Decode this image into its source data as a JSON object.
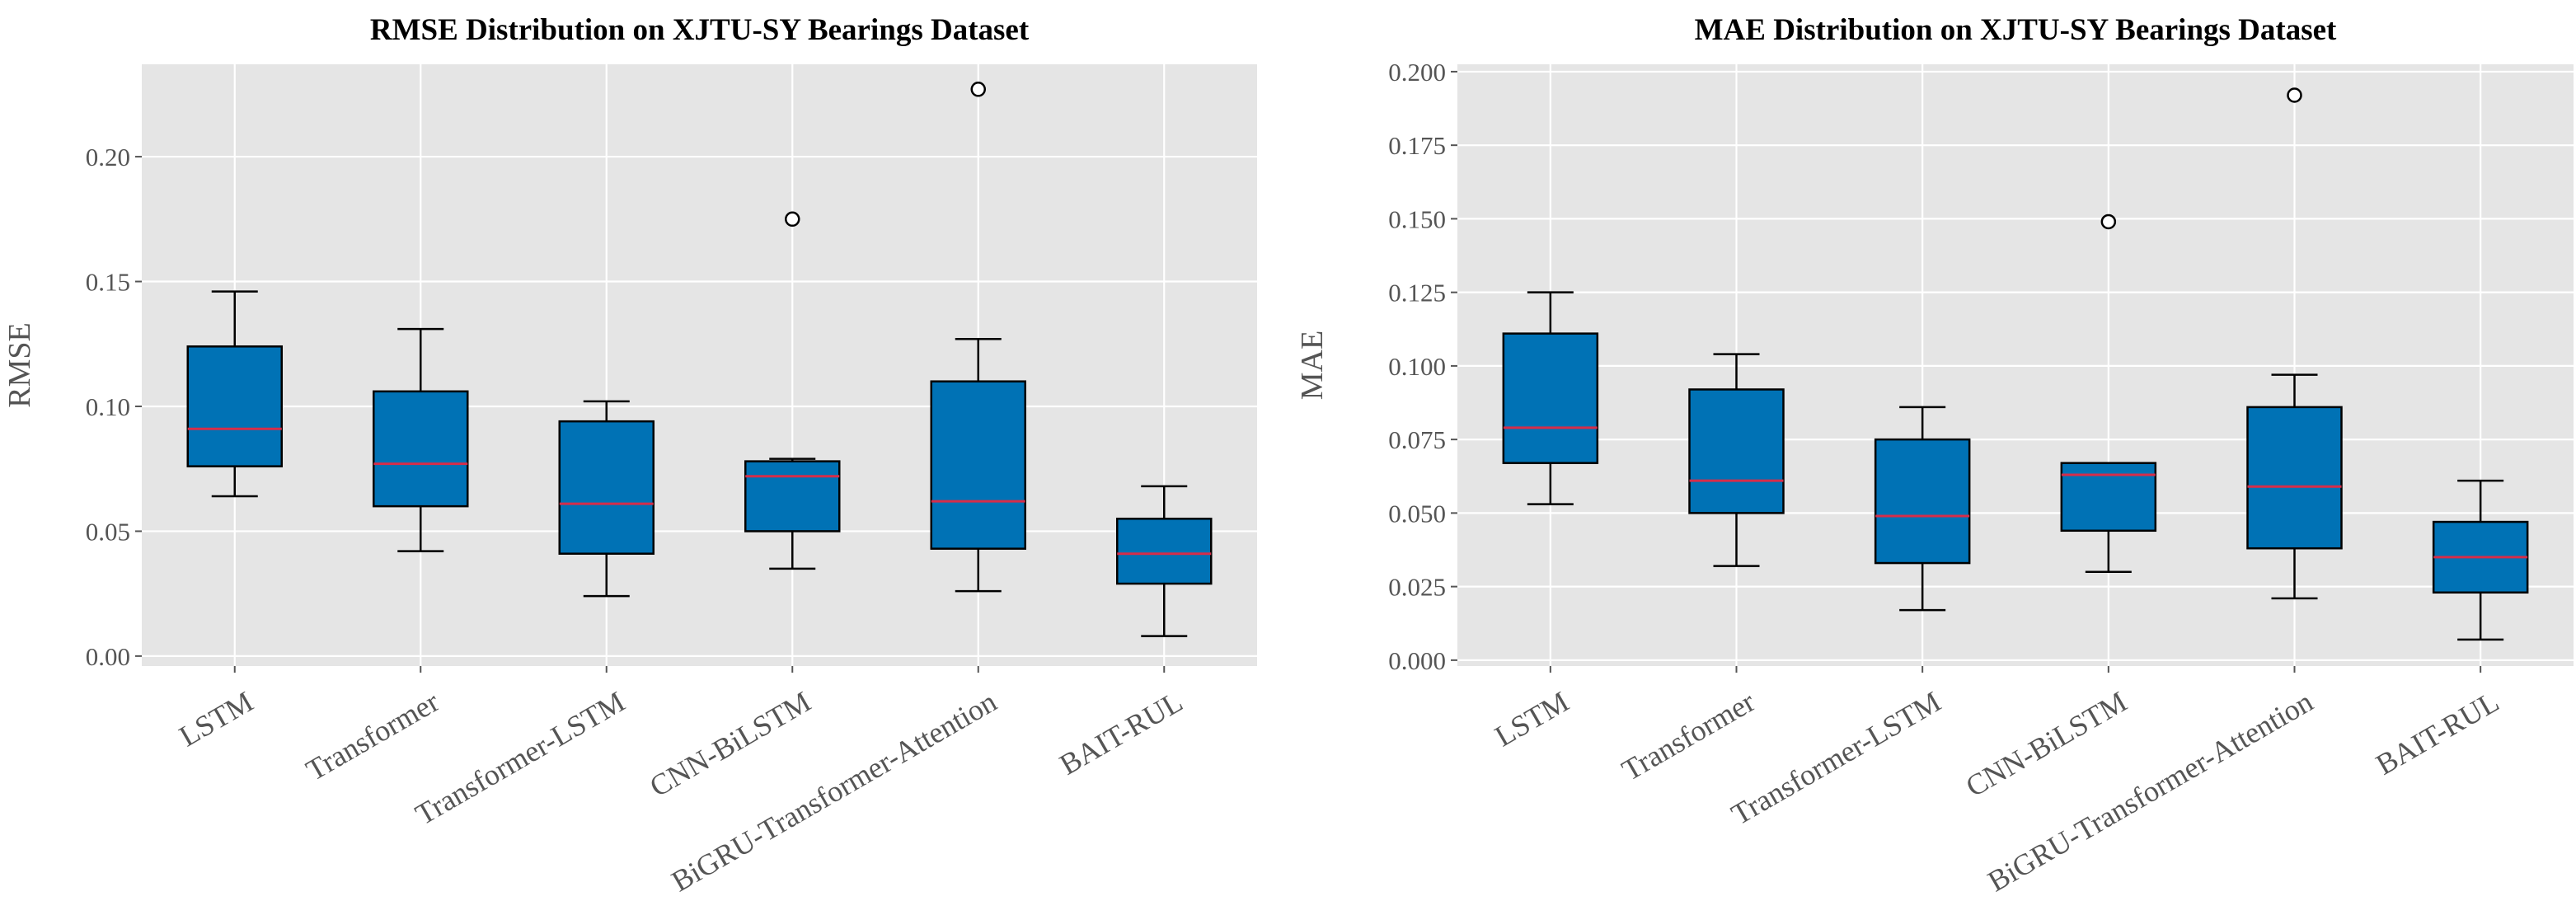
{
  "colors": {
    "box_fill": "#0072b5",
    "median": "#d62d4a"
  },
  "chart_data": [
    {
      "type": "box",
      "title": "RMSE Distribution on XJTU-SY Bearings Dataset",
      "xlabel": "",
      "ylabel": "RMSE",
      "ylim": [
        -0.004,
        0.237
      ],
      "yticks": [
        0.0,
        0.05,
        0.1,
        0.15,
        0.2
      ],
      "ytick_labels": [
        "0.00",
        "0.05",
        "0.10",
        "0.15",
        "0.20"
      ],
      "grid": true,
      "categories": [
        "LSTM",
        "Transformer",
        "Transformer-LSTM",
        "CNN-BiLSTM",
        "BiGRU-Transformer-Attention",
        "BAIT-RUL"
      ],
      "boxes": [
        {
          "whisker_low": 0.064,
          "q1": 0.076,
          "median": 0.091,
          "q3": 0.124,
          "whisker_high": 0.146,
          "fliers": []
        },
        {
          "whisker_low": 0.042,
          "q1": 0.06,
          "median": 0.077,
          "q3": 0.106,
          "whisker_high": 0.131,
          "fliers": []
        },
        {
          "whisker_low": 0.024,
          "q1": 0.041,
          "median": 0.061,
          "q3": 0.094,
          "whisker_high": 0.102,
          "fliers": []
        },
        {
          "whisker_low": 0.035,
          "q1": 0.05,
          "median": 0.072,
          "q3": 0.078,
          "whisker_high": 0.079,
          "fliers": [
            0.175
          ]
        },
        {
          "whisker_low": 0.026,
          "q1": 0.043,
          "median": 0.062,
          "q3": 0.11,
          "whisker_high": 0.127,
          "fliers": [
            0.227
          ]
        },
        {
          "whisker_low": 0.008,
          "q1": 0.029,
          "median": 0.041,
          "q3": 0.055,
          "whisker_high": 0.068,
          "fliers": []
        }
      ]
    },
    {
      "type": "box",
      "title": "MAE Distribution on XJTU-SY Bearings Dataset",
      "xlabel": "",
      "ylabel": "MAE",
      "ylim": [
        -0.002,
        0.2025
      ],
      "yticks": [
        0.0,
        0.025,
        0.05,
        0.075,
        0.1,
        0.125,
        0.15,
        0.175,
        0.2
      ],
      "ytick_labels": [
        "0.000",
        "0.025",
        "0.050",
        "0.075",
        "0.100",
        "0.125",
        "0.150",
        "0.175",
        "0.200"
      ],
      "grid": true,
      "categories": [
        "LSTM",
        "Transformer",
        "Transformer-LSTM",
        "CNN-BiLSTM",
        "BiGRU-Transformer-Attention",
        "BAIT-RUL"
      ],
      "boxes": [
        {
          "whisker_low": 0.053,
          "q1": 0.067,
          "median": 0.079,
          "q3": 0.111,
          "whisker_high": 0.125,
          "fliers": []
        },
        {
          "whisker_low": 0.032,
          "q1": 0.05,
          "median": 0.061,
          "q3": 0.092,
          "whisker_high": 0.104,
          "fliers": []
        },
        {
          "whisker_low": 0.017,
          "q1": 0.033,
          "median": 0.049,
          "q3": 0.075,
          "whisker_high": 0.086,
          "fliers": []
        },
        {
          "whisker_low": 0.03,
          "q1": 0.044,
          "median": 0.063,
          "q3": 0.067,
          "whisker_high": 0.067,
          "fliers": [
            0.149
          ]
        },
        {
          "whisker_low": 0.021,
          "q1": 0.038,
          "median": 0.059,
          "q3": 0.086,
          "whisker_high": 0.097,
          "fliers": [
            0.192
          ]
        },
        {
          "whisker_low": 0.007,
          "q1": 0.023,
          "median": 0.035,
          "q3": 0.047,
          "whisker_high": 0.061,
          "fliers": []
        }
      ]
    }
  ]
}
